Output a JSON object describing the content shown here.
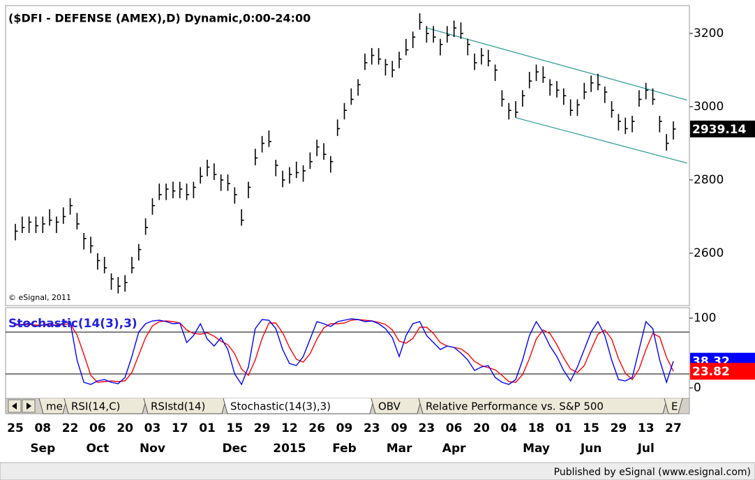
{
  "chart_data": [
    {
      "type": "ohlc",
      "title": "($DFI - DEFENSE (AMEX),D) Dynamic,0:00-24:00",
      "annotation": "© eSignal, 2011",
      "color": "#000000",
      "ylim": [
        2457,
        3276
      ],
      "yticks": [
        2600,
        2800,
        3000,
        3200
      ],
      "x_labels": [
        "25",
        "08",
        "22",
        "06",
        "20",
        "03",
        "17",
        "01",
        "15",
        "29",
        "12",
        "26",
        "09",
        "23",
        "09",
        "23",
        "06",
        "20",
        "04",
        "18",
        "01",
        "15",
        "29",
        "13",
        "27"
      ],
      "x_month_labels": [
        null,
        "Sep",
        null,
        "Oct",
        null,
        "Nov",
        null,
        null,
        "Dec",
        null,
        "2015",
        null,
        "Feb",
        null,
        "Mar",
        null,
        "Apr",
        null,
        null,
        "May",
        null,
        "Jun",
        null,
        "Jul",
        null
      ],
      "high": [
        2680,
        2700,
        2700,
        2700,
        2700,
        2720,
        2700,
        2725,
        2750,
        2710,
        2655,
        2645,
        2600,
        2590,
        2545,
        2535,
        2540,
        2590,
        2625,
        2695,
        2750,
        2790,
        2790,
        2795,
        2795,
        2790,
        2795,
        2835,
        2855,
        2845,
        2815,
        2815,
        2780,
        2720,
        2795,
        2885,
        2920,
        2935,
        2855,
        2825,
        2835,
        2850,
        2840,
        2875,
        2910,
        2900,
        2865,
        2965,
        3010,
        3050,
        3075,
        3145,
        3160,
        3160,
        3130,
        3125,
        3150,
        3185,
        3205,
        3255,
        3220,
        3220,
        3185,
        3220,
        3235,
        3230,
        3185,
        3145,
        3160,
        3155,
        3115,
        3045,
        3010,
        3015,
        3045,
        3095,
        3115,
        3110,
        3075,
        3070,
        3050,
        3020,
        3020,
        3065,
        3085,
        3090,
        3055,
        3015,
        2980,
        2970,
        2975,
        3045,
        3065,
        3050,
        2975,
        2925,
        2960
      ],
      "low": [
        2635,
        2655,
        2655,
        2655,
        2655,
        2675,
        2655,
        2680,
        2705,
        2665,
        2610,
        2600,
        2555,
        2545,
        2500,
        2490,
        2495,
        2545,
        2580,
        2650,
        2705,
        2745,
        2745,
        2750,
        2750,
        2745,
        2750,
        2790,
        2810,
        2800,
        2770,
        2770,
        2735,
        2675,
        2750,
        2840,
        2875,
        2890,
        2810,
        2780,
        2790,
        2805,
        2795,
        2830,
        2865,
        2855,
        2820,
        2920,
        2965,
        3005,
        3030,
        3100,
        3115,
        3115,
        3085,
        3080,
        3105,
        3140,
        3160,
        3210,
        3175,
        3175,
        3140,
        3175,
        3190,
        3185,
        3140,
        3100,
        3115,
        3110,
        3070,
        3000,
        2965,
        2970,
        3000,
        3050,
        3070,
        3065,
        3030,
        3025,
        3005,
        2975,
        2975,
        3020,
        3040,
        3045,
        3010,
        2970,
        2935,
        2925,
        2930,
        3000,
        3020,
        3005,
        2930,
        2880,
        2910
      ],
      "close": [
        2660,
        2670,
        2685,
        2675,
        2680,
        2690,
        2685,
        2700,
        2730,
        2680,
        2640,
        2620,
        2580,
        2560,
        2530,
        2510,
        2520,
        2560,
        2610,
        2670,
        2730,
        2760,
        2775,
        2770,
        2775,
        2760,
        2780,
        2810,
        2835,
        2815,
        2800,
        2790,
        2760,
        2690,
        2780,
        2860,
        2900,
        2905,
        2840,
        2800,
        2815,
        2820,
        2825,
        2850,
        2890,
        2870,
        2850,
        2940,
        2990,
        3020,
        3060,
        3120,
        3140,
        3130,
        3115,
        3100,
        3130,
        3155,
        3190,
        3230,
        3200,
        3190,
        3170,
        3195,
        3215,
        3200,
        3170,
        3120,
        3140,
        3125,
        3100,
        3020,
        2990,
        2985,
        3030,
        3070,
        3095,
        3080,
        3060,
        3045,
        3030,
        2990,
        3005,
        3040,
        3065,
        3060,
        3040,
        2990,
        2960,
        2940,
        2960,
        3020,
        3045,
        3020,
        2960,
        2900,
        2939.14
      ],
      "trendlines": [
        {
          "color": "#3a9e9e",
          "from": [
            60,
            3215
          ],
          "to": [
            98,
            3018
          ]
        },
        {
          "color": "#3a9e9e",
          "from": [
            73,
            2970
          ],
          "to": [
            98,
            2846
          ]
        }
      ]
    },
    {
      "type": "line",
      "title": "Stochastic(14(3),3)",
      "ylim": [
        -12,
        112
      ],
      "yticks": [
        0,
        100
      ],
      "levels": [
        20,
        80
      ],
      "series": [
        {
          "color": "#0000ff",
          "values": [
            92,
            90,
            93,
            88,
            90,
            92,
            89,
            93,
            95,
            40,
            8,
            5,
            10,
            12,
            8,
            6,
            15,
            45,
            80,
            92,
            96,
            97,
            95,
            92,
            93,
            65,
            75,
            92,
            70,
            60,
            72,
            55,
            20,
            5,
            30,
            85,
            98,
            97,
            85,
            55,
            35,
            32,
            45,
            70,
            95,
            92,
            88,
            95,
            97,
            99,
            98,
            95,
            96,
            92,
            85,
            72,
            45,
            75,
            92,
            95,
            75,
            65,
            55,
            60,
            58,
            50,
            40,
            25,
            30,
            32,
            15,
            8,
            5,
            12,
            40,
            75,
            95,
            80,
            60,
            45,
            25,
            10,
            30,
            55,
            80,
            95,
            75,
            40,
            12,
            10,
            15,
            55,
            95,
            85,
            40,
            8,
            38.32
          ]
        },
        {
          "color": "#ff0000",
          "values": [
            90,
            91,
            91,
            90,
            90,
            90,
            90,
            91,
            92,
            76,
            48,
            18,
            8,
            9,
            10,
            9,
            10,
            22,
            47,
            72,
            89,
            95,
            96,
            95,
            93,
            83,
            78,
            77,
            79,
            74,
            67,
            62,
            49,
            27,
            18,
            40,
            71,
            93,
            93,
            79,
            58,
            41,
            37,
            49,
            70,
            86,
            92,
            92,
            93,
            97,
            98,
            97,
            96,
            94,
            91,
            83,
            67,
            64,
            71,
            87,
            87,
            78,
            65,
            60,
            58,
            56,
            49,
            38,
            32,
            29,
            26,
            18,
            9,
            8,
            19,
            42,
            70,
            83,
            78,
            62,
            43,
            27,
            22,
            32,
            55,
            77,
            83,
            70,
            42,
            21,
            12,
            27,
            55,
            78,
            73,
            44,
            23.82
          ]
        }
      ]
    }
  ],
  "tabs": [
    "me",
    "RSI(14,C)",
    "RSIstd(14)",
    "Stochastic(14(3),3)",
    "OBV",
    "Relative Performance vs. S&P 500",
    "E"
  ],
  "active_tab": 3,
  "footer": "Published by eSignal (www.esignal.com)"
}
